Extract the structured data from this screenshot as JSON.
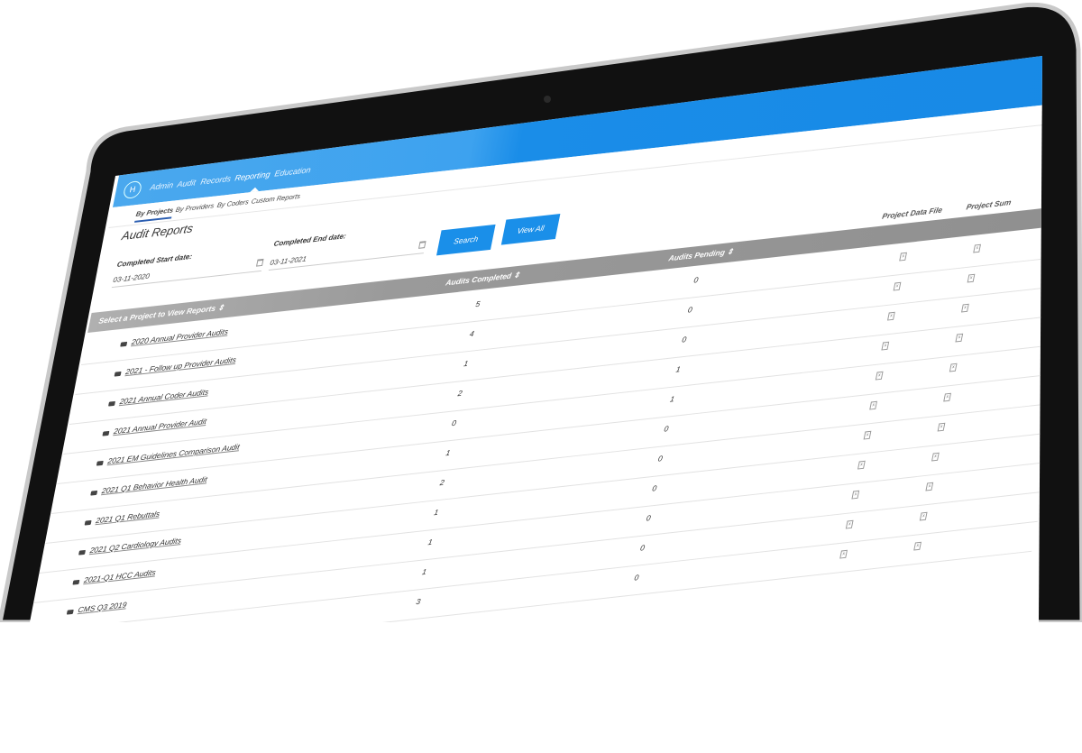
{
  "nav": {
    "logo": "H",
    "items": [
      {
        "label": "Admin"
      },
      {
        "label": "Audit"
      },
      {
        "label": "Records"
      },
      {
        "label": "Reporting",
        "active": true
      },
      {
        "label": "Education"
      }
    ]
  },
  "subnav": {
    "items": [
      {
        "label": "By Projects",
        "active": true
      },
      {
        "label": "By Providers"
      },
      {
        "label": "By Coders"
      },
      {
        "label": "Custom Reports"
      }
    ]
  },
  "page": {
    "title": "Audit Reports"
  },
  "filters": {
    "start_label": "Completed Start date:",
    "start_value": "03-11-2020",
    "end_label": "Completed End date:",
    "end_value": "03-11-2021",
    "search_label": "Search",
    "view_all_label": "View All"
  },
  "table": {
    "headers": {
      "project": "Select a Project to View Reports ⇕",
      "completed": "Audits Completed ⇕",
      "pending": "Audits Pending ⇕",
      "data_file": "Project Data File",
      "summary": "Project Sum"
    },
    "rows": [
      {
        "project": "2020 Annual Provider Audits",
        "completed": "5",
        "pending": "0"
      },
      {
        "project": "2021 - Follow up Provider Audits",
        "completed": "4",
        "pending": "0"
      },
      {
        "project": "2021 Annual Coder Audits",
        "completed": "1",
        "pending": "0"
      },
      {
        "project": "2021 Annual Provider Audit",
        "completed": "2",
        "pending": "1"
      },
      {
        "project": "2021 EM Guidelines Comparison Audit",
        "completed": "0",
        "pending": "1"
      },
      {
        "project": "2021 Q1 Behavior Health Audit",
        "completed": "1",
        "pending": "0"
      },
      {
        "project": "2021 Q1 Rebuttals",
        "completed": "2",
        "pending": "0"
      },
      {
        "project": "2021 Q2 Cardiology Audits",
        "completed": "1",
        "pending": "0"
      },
      {
        "project": "2021-Q1 HCC Audits",
        "completed": "1",
        "pending": "0"
      },
      {
        "project": "CMS Q3 2019",
        "completed": "1",
        "pending": "0"
      },
      {
        "project": "",
        "completed": "3",
        "pending": "0"
      }
    ]
  },
  "colors": {
    "accent": "#1789e6",
    "button": "#1a8fe9",
    "header_gray": "#9a9a9a"
  },
  "icons": {
    "row": "folder-icon",
    "file": "excel-file-icon",
    "date": "calendar-icon"
  }
}
